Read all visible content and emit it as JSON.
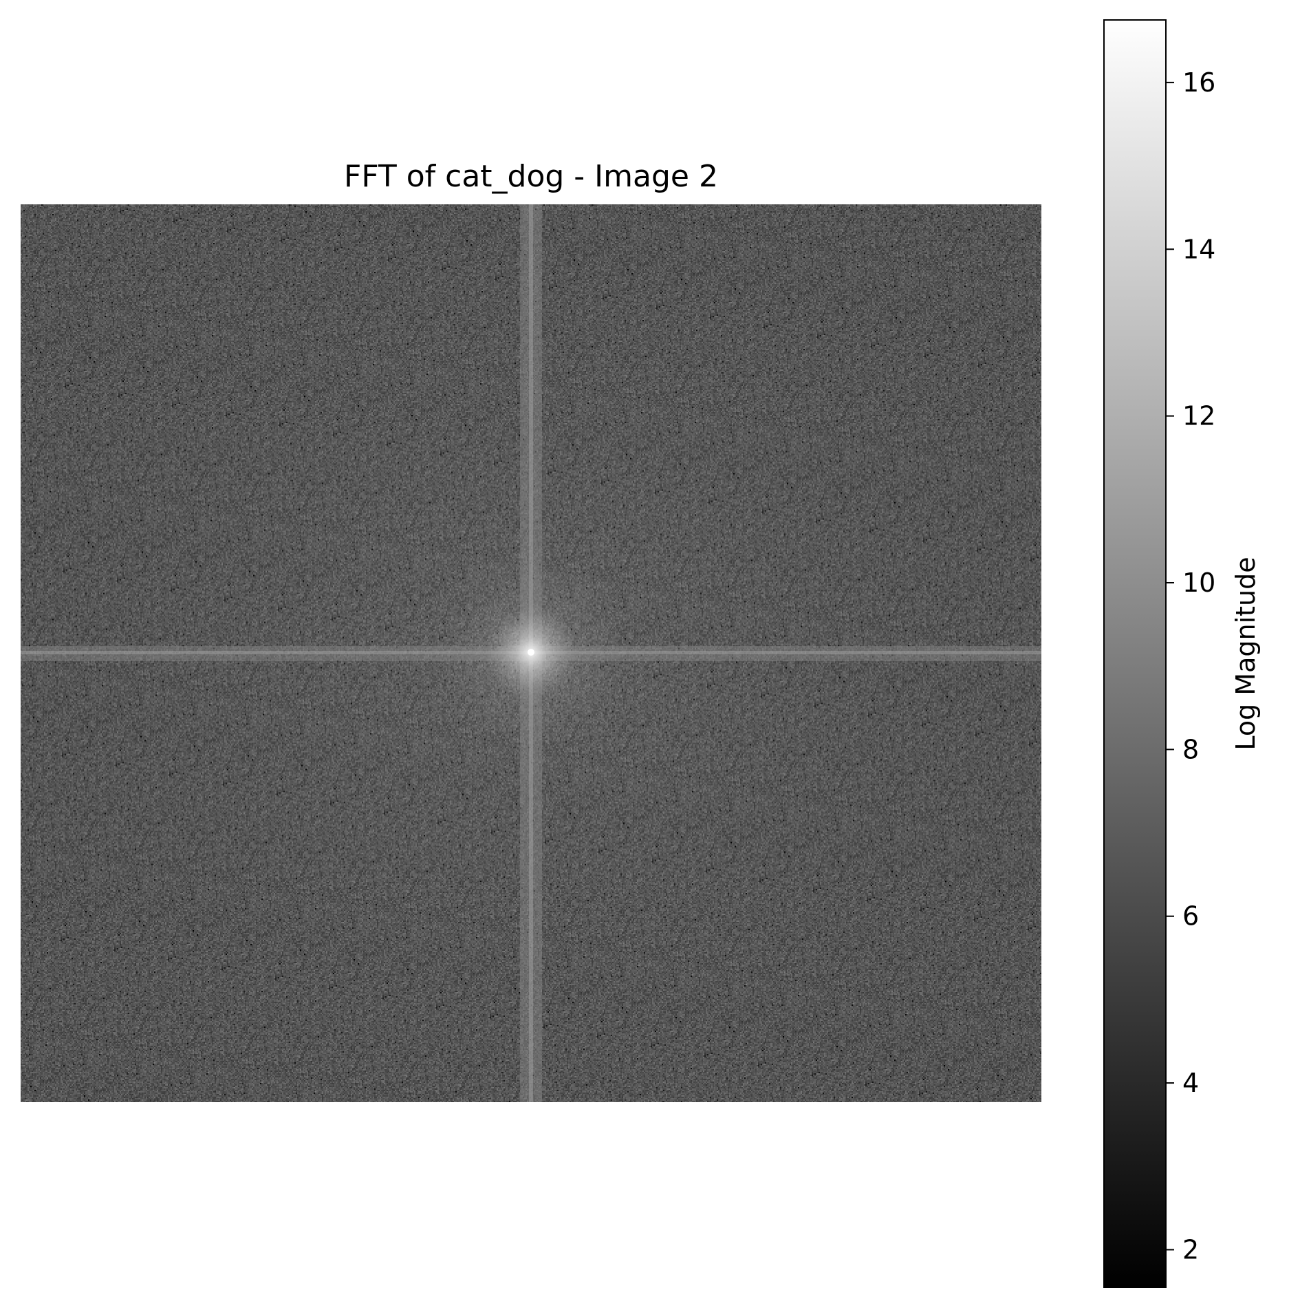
{
  "chart_data": {
    "type": "heatmap",
    "title": "FFT of cat_dog - Image 2",
    "colormap": "gray",
    "axes_visible": false,
    "grid": false,
    "colorbar": {
      "label": "Log Magnitude",
      "range": [
        1.55,
        16.75
      ],
      "ticks": [
        2,
        4,
        6,
        8,
        10,
        12,
        14,
        16
      ],
      "tick_labels": [
        "2",
        "4",
        "6",
        "8",
        "10",
        "12",
        "14",
        "16"
      ]
    },
    "spectrum": {
      "background_level": 6.5,
      "noise_range": [
        1.6,
        9.5
      ],
      "center_peak": 16.75,
      "cross_axis_level": 8.3,
      "description_features": [
        "bright center peak",
        "horizontal DC line",
        "vertical DC line"
      ]
    }
  }
}
